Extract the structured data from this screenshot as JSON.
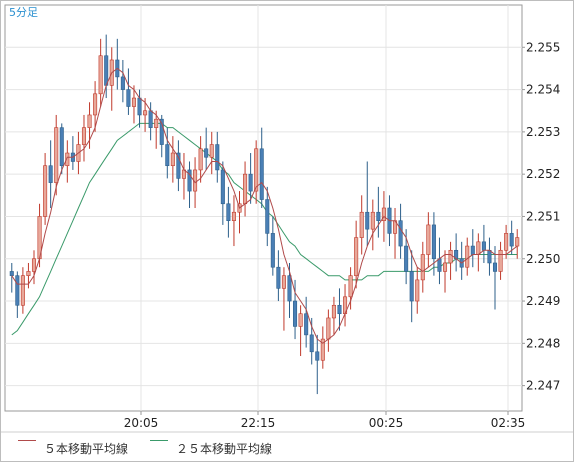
{
  "chart_data": {
    "type": "candlestick",
    "title": "5分足",
    "x_tick_labels": [
      "20:05",
      "22:15",
      "00:25",
      "02:35"
    ],
    "y_ticks": [
      2.247,
      2.248,
      2.249,
      2.25,
      2.251,
      2.252,
      2.253,
      2.254,
      2.255
    ],
    "y_tick_labels": [
      "2.247",
      "2.248",
      "2.249",
      "2.250",
      "2.251",
      "2.252",
      "2.253",
      "2.254",
      "2.255"
    ],
    "ylim": [
      2.2464,
      2.256
    ],
    "grid": true,
    "legend_position": "bottom",
    "legend": [
      "５本移動平均線",
      "２５本移動平均線"
    ],
    "colors": {
      "up": "#e8a89a",
      "up_border": "#c0392b",
      "down": "#4a7fb5",
      "down_border": "#2c5f8a",
      "ma5": "#b04a4a",
      "ma25": "#3a9a6a",
      "grid": "#e4e4e4",
      "frame": "#9a9a9a",
      "title": "#2a8fcf"
    },
    "candles": [
      [
        2.2497,
        2.2499,
        2.2492,
        2.2496
      ],
      [
        2.2496,
        2.2497,
        2.2486,
        2.2489
      ],
      [
        2.2489,
        2.2498,
        2.2487,
        2.2496
      ],
      [
        2.2496,
        2.2499,
        2.2493,
        2.2497
      ],
      [
        2.2497,
        2.2502,
        2.2494,
        2.25
      ],
      [
        2.25,
        2.2513,
        2.2498,
        2.251
      ],
      [
        2.251,
        2.2525,
        2.2508,
        2.2522
      ],
      [
        2.2522,
        2.2528,
        2.2512,
        2.2518
      ],
      [
        2.2518,
        2.2534,
        2.2515,
        2.2531
      ],
      [
        2.2531,
        2.2532,
        2.252,
        2.2522
      ],
      [
        2.2522,
        2.2528,
        2.2518,
        2.2525
      ],
      [
        2.2525,
        2.2529,
        2.2521,
        2.2523
      ],
      [
        2.2523,
        2.253,
        2.252,
        2.2527
      ],
      [
        2.2527,
        2.2534,
        2.2523,
        2.2531
      ],
      [
        2.2531,
        2.2537,
        2.2526,
        2.2534
      ],
      [
        2.2534,
        2.2542,
        2.253,
        2.2539
      ],
      [
        2.2539,
        2.2552,
        2.2536,
        2.2548
      ],
      [
        2.2548,
        2.2553,
        2.2538,
        2.2541
      ],
      [
        2.2541,
        2.255,
        2.2535,
        2.2547
      ],
      [
        2.2547,
        2.2552,
        2.254,
        2.2543
      ],
      [
        2.2543,
        2.2547,
        2.2537,
        2.254
      ],
      [
        2.254,
        2.2545,
        2.2534,
        2.2536
      ],
      [
        2.2536,
        2.2541,
        2.2532,
        2.2538
      ],
      [
        2.2538,
        2.254,
        2.2531,
        2.2534
      ],
      [
        2.2534,
        2.2538,
        2.253,
        2.2535
      ],
      [
        2.2535,
        2.2537,
        2.2528,
        2.2531
      ],
      [
        2.2531,
        2.2535,
        2.2526,
        2.2533
      ],
      [
        2.2533,
        2.2534,
        2.2524,
        2.2527
      ],
      [
        2.2527,
        2.2531,
        2.2519,
        2.2522
      ],
      [
        2.2522,
        2.2529,
        2.2518,
        2.2525
      ],
      [
        2.2525,
        2.2528,
        2.2516,
        2.2519
      ],
      [
        2.2519,
        2.2525,
        2.2514,
        2.2521
      ],
      [
        2.2521,
        2.2523,
        2.2512,
        2.2516
      ],
      [
        2.2516,
        2.2524,
        2.2512,
        2.2521
      ],
      [
        2.2521,
        2.2529,
        2.2518,
        2.2526
      ],
      [
        2.2526,
        2.2531,
        2.2521,
        2.2524
      ],
      [
        2.2524,
        2.253,
        2.252,
        2.2527
      ],
      [
        2.2527,
        2.253,
        2.2518,
        2.2521
      ],
      [
        2.2521,
        2.2523,
        2.2508,
        2.2513
      ],
      [
        2.2513,
        2.2517,
        2.2505,
        2.2509
      ],
      [
        2.2509,
        2.2515,
        2.2503,
        2.2511
      ],
      [
        2.2511,
        2.2516,
        2.2506,
        2.2513
      ],
      [
        2.2513,
        2.2523,
        2.251,
        2.252
      ],
      [
        2.252,
        2.2525,
        2.2513,
        2.2516
      ],
      [
        2.2516,
        2.2528,
        2.2513,
        2.2526
      ],
      [
        2.2526,
        2.2531,
        2.2512,
        2.2514
      ],
      [
        2.2514,
        2.2517,
        2.2503,
        2.2506
      ],
      [
        2.2506,
        2.251,
        2.2496,
        2.2498
      ],
      [
        2.2498,
        2.2502,
        2.249,
        2.2493
      ],
      [
        2.2493,
        2.2498,
        2.2483,
        2.2496
      ],
      [
        2.2496,
        2.2499,
        2.2486,
        2.249
      ],
      [
        2.249,
        2.2495,
        2.2481,
        2.2484
      ],
      [
        2.2484,
        2.2489,
        2.2477,
        2.2487
      ],
      [
        2.2487,
        2.2491,
        2.2479,
        2.2482
      ],
      [
        2.2482,
        2.2486,
        2.2475,
        2.2478
      ],
      [
        2.2478,
        2.2482,
        2.2468,
        2.2476
      ],
      [
        2.2476,
        2.2484,
        2.2474,
        2.2481
      ],
      [
        2.2481,
        2.2488,
        2.2478,
        2.2486
      ],
      [
        2.2486,
        2.2491,
        2.2482,
        2.2489
      ],
      [
        2.2489,
        2.2493,
        2.2483,
        2.2487
      ],
      [
        2.2487,
        2.2494,
        2.2484,
        2.2491
      ],
      [
        2.2491,
        2.2498,
        2.2488,
        2.2496
      ],
      [
        2.2496,
        2.2509,
        2.2493,
        2.2505
      ],
      [
        2.2505,
        2.2515,
        2.2501,
        2.2511
      ],
      [
        2.2511,
        2.2523,
        2.2503,
        2.2507
      ],
      [
        2.2507,
        2.2514,
        2.2502,
        2.2511
      ],
      [
        2.2511,
        2.2517,
        2.2505,
        2.2509
      ],
      [
        2.2509,
        2.2516,
        2.2504,
        2.2512
      ],
      [
        2.2512,
        2.2515,
        2.2503,
        2.2506
      ],
      [
        2.2506,
        2.2512,
        2.25,
        2.2509
      ],
      [
        2.2509,
        2.2513,
        2.25,
        2.2503
      ],
      [
        2.2503,
        2.2507,
        2.2494,
        2.2497
      ],
      [
        2.2497,
        2.2502,
        2.2485,
        2.249
      ],
      [
        2.249,
        2.2498,
        2.2487,
        2.2495
      ],
      [
        2.2495,
        2.2504,
        2.2492,
        2.2501
      ],
      [
        2.2501,
        2.2511,
        2.2498,
        2.2508
      ],
      [
        2.2508,
        2.2511,
        2.2496,
        2.25
      ],
      [
        2.25,
        2.2505,
        2.2494,
        2.2497
      ],
      [
        2.2497,
        2.2502,
        2.2492,
        2.2499
      ],
      [
        2.2499,
        2.2504,
        2.2495,
        2.2502
      ],
      [
        2.2502,
        2.2506,
        2.2497,
        2.25
      ],
      [
        2.25,
        2.2504,
        2.2495,
        2.2498
      ],
      [
        2.2498,
        2.2505,
        2.2496,
        2.2503
      ],
      [
        2.2503,
        2.2507,
        2.2498,
        2.2501
      ],
      [
        2.2501,
        2.2506,
        2.2497,
        2.2504
      ],
      [
        2.2504,
        2.2508,
        2.2499,
        2.2502
      ],
      [
        2.2502,
        2.2505,
        2.2496,
        2.2499
      ],
      [
        2.2499,
        2.2503,
        2.2488,
        2.2497
      ],
      [
        2.2497,
        2.2504,
        2.2495,
        2.2502
      ],
      [
        2.2502,
        2.2508,
        2.25,
        2.2506
      ],
      [
        2.2506,
        2.2509,
        2.2501,
        2.2503
      ],
      [
        2.2503,
        2.2507,
        2.25,
        2.2505
      ]
    ],
    "ma5": [
      2.2496,
      2.2494,
      2.2494,
      2.2494,
      2.2496,
      2.25,
      2.2506,
      2.2511,
      2.2517,
      2.2521,
      2.2524,
      2.2524,
      2.2525,
      2.2526,
      2.2528,
      2.2531,
      2.2536,
      2.2541,
      2.2544,
      2.2545,
      2.2544,
      2.2541,
      2.254,
      2.2538,
      2.2537,
      2.2535,
      2.2534,
      2.2532,
      2.2528,
      2.2526,
      2.2524,
      2.2521,
      2.252,
      2.2518,
      2.2519,
      2.2521,
      2.2523,
      2.2523,
      2.2522,
      2.2519,
      2.2516,
      2.2512,
      2.2513,
      2.2514,
      2.2517,
      2.2518,
      2.2516,
      2.2512,
      2.2507,
      2.2501,
      2.2497,
      2.2492,
      2.249,
      2.2488,
      2.2484,
      2.2481,
      2.248,
      2.2481,
      2.2482,
      2.2484,
      2.2487,
      2.249,
      2.2494,
      2.2499,
      2.2503,
      2.2506,
      2.2508,
      2.251,
      2.2509,
      2.2509,
      2.2507,
      2.2505,
      2.2501,
      2.2498,
      2.2497,
      2.2498,
      2.2499,
      2.25,
      2.2501,
      2.2501,
      2.25,
      2.2499,
      2.25,
      2.2501,
      2.2501,
      2.2502,
      2.2502,
      2.2501,
      2.2501,
      2.2501,
      2.2502,
      2.2503
    ],
    "ma25": [
      2.2482,
      2.2483,
      2.2485,
      2.2487,
      2.2489,
      2.2491,
      2.2494,
      2.2497,
      2.25,
      2.2503,
      2.2506,
      2.2509,
      2.2512,
      2.2515,
      2.2518,
      2.252,
      2.2522,
      2.2524,
      2.2526,
      2.2528,
      2.2529,
      2.253,
      2.2531,
      2.2532,
      2.2532,
      2.2532,
      2.2532,
      2.2532,
      2.2531,
      2.2531,
      2.253,
      2.2529,
      2.2528,
      2.2527,
      2.2526,
      2.2525,
      2.2524,
      2.2523,
      2.2521,
      2.252,
      2.2518,
      2.2517,
      2.2516,
      2.2515,
      2.2514,
      2.2513,
      2.2511,
      2.251,
      2.2508,
      2.2506,
      2.2504,
      2.2503,
      2.2501,
      2.25,
      2.2499,
      2.2498,
      2.2497,
      2.2496,
      2.2496,
      2.2496,
      2.2495,
      2.2495,
      2.2495,
      2.2495,
      2.2496,
      2.2496,
      2.2496,
      2.2497,
      2.2497,
      2.2497,
      2.2497,
      2.2497,
      2.2497,
      2.2497,
      2.2497,
      2.2497,
      2.2498,
      2.2498,
      2.2499,
      2.2499,
      2.25,
      2.25,
      2.25,
      2.2501,
      2.2501,
      2.2501,
      2.2501,
      2.2501,
      2.2501,
      2.2501,
      2.2501,
      2.2501
    ]
  }
}
